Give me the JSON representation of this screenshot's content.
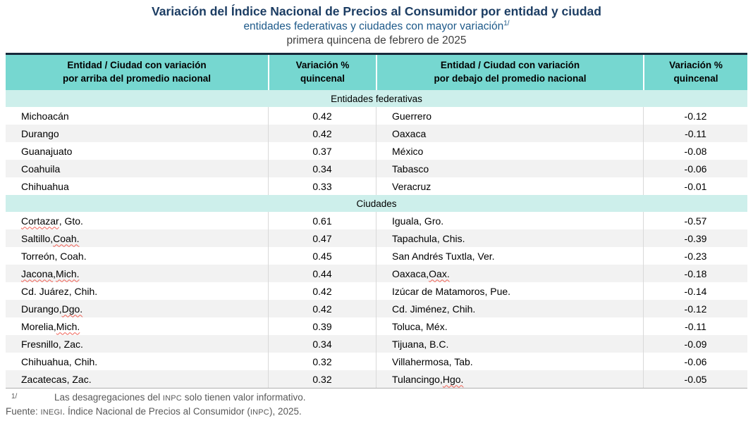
{
  "header": {
    "title": "Variación del Índice Nacional de Precios al Consumidor por entidad y ciudad",
    "subtitle": "entidades federativas y ciudades con mayor variación",
    "subtitle_ref": "1/",
    "period": "primera quincena de febrero de 2025"
  },
  "table": {
    "columns": [
      {
        "line1": "Entidad / Ciudad con variación",
        "line2": "por arriba del promedio nacional"
      },
      {
        "line1": "Variación %",
        "line2": "quincenal"
      },
      {
        "line1": "Entidad / Ciudad con variación",
        "line2": "por debajo del promedio nacional"
      },
      {
        "line1": "Variación %",
        "line2": "quincenal"
      }
    ],
    "sections": [
      {
        "label": "Entidades federativas",
        "rows": [
          {
            "above": {
              "name": "Michoacán",
              "value": "0.42"
            },
            "below": {
              "name": "Guerrero",
              "value": "-0.12"
            }
          },
          {
            "above": {
              "name": "Durango",
              "value": "0.42"
            },
            "below": {
              "name": "Oaxaca",
              "value": "-0.11"
            }
          },
          {
            "above": {
              "name": "Guanajuato",
              "value": "0.37"
            },
            "below": {
              "name": "México",
              "value": "-0.08"
            }
          },
          {
            "above": {
              "name": "Coahuila",
              "value": "0.34"
            },
            "below": {
              "name": "Tabasco",
              "value": "-0.06"
            }
          },
          {
            "above": {
              "name": "Chihuahua",
              "value": "0.33"
            },
            "below": {
              "name": "Veracruz",
              "value": "-0.01"
            }
          }
        ]
      },
      {
        "label": "Ciudades",
        "rows": [
          {
            "above": {
              "name": "Cortazar, Gto.",
              "value": "0.61",
              "misspelled": [
                "Cortazar"
              ]
            },
            "below": {
              "name": "Iguala, Gro.",
              "value": "-0.57"
            }
          },
          {
            "above": {
              "name": "Saltillo, Coah.",
              "value": "0.47",
              "misspelled": [
                "Coah."
              ]
            },
            "below": {
              "name": "Tapachula, Chis.",
              "value": "-0.39"
            }
          },
          {
            "above": {
              "name": "Torreón, Coah.",
              "value": "0.45"
            },
            "below": {
              "name": "San Andrés Tuxtla, Ver.",
              "value": "-0.23"
            }
          },
          {
            "above": {
              "name": "Jacona, Mich.",
              "value": "0.44",
              "misspelled": [
                "Jacona",
                "Mich."
              ]
            },
            "below": {
              "name": "Oaxaca, Oax.",
              "value": "-0.18",
              "misspelled": [
                "Oax."
              ]
            }
          },
          {
            "above": {
              "name": "Cd. Juárez, Chih.",
              "value": "0.42"
            },
            "below": {
              "name": "Izúcar de Matamoros, Pue.",
              "value": "-0.14"
            }
          },
          {
            "above": {
              "name": "Durango, Dgo.",
              "value": "0.42",
              "misspelled": [
                "Dgo."
              ]
            },
            "below": {
              "name": "Cd. Jiménez, Chih.",
              "value": "-0.12"
            }
          },
          {
            "above": {
              "name": "Morelia, Mich.",
              "value": "0.39",
              "misspelled": [
                "Mich."
              ]
            },
            "below": {
              "name": "Toluca, Méx.",
              "value": "-0.11"
            }
          },
          {
            "above": {
              "name": "Fresnillo, Zac.",
              "value": "0.34"
            },
            "below": {
              "name": "Tijuana, B.C.",
              "value": "-0.09"
            }
          },
          {
            "above": {
              "name": "Chihuahua, Chih.",
              "value": "0.32"
            },
            "below": {
              "name": "Villahermosa, Tab.",
              "value": "-0.06"
            }
          },
          {
            "above": {
              "name": "Zacatecas, Zac.",
              "value": "0.32"
            },
            "below": {
              "name": "Tulancingo, Hgo.",
              "value": "-0.05",
              "misspelled": [
                "Hgo."
              ]
            }
          }
        ]
      }
    ]
  },
  "footnotes": {
    "note_marker": "1/",
    "note_pre": "Las desagregaciones del ",
    "note_acronym": "INPC",
    "note_post": " solo tienen valor informativo.",
    "source_pre": "Fuente: ",
    "source_inst": "INEGI",
    "source_mid": ". Índice Nacional de Precios al Consumidor (",
    "source_acronym": "INPC",
    "source_post": "), 2025."
  },
  "colors": {
    "header_bg": "#76d7d0",
    "section_bg": "#cdefeb",
    "row_alt_bg": "#f2f2f2",
    "title": "#1c3d63",
    "subtitle": "#1e5a8a",
    "period": "#3f3f3f",
    "footnote": "#595959",
    "table_top_border": "#17293a",
    "table_bottom_border": "#b0b0b0",
    "cell_divider": "#d9d9d9",
    "spellcheck": "#f06054"
  }
}
